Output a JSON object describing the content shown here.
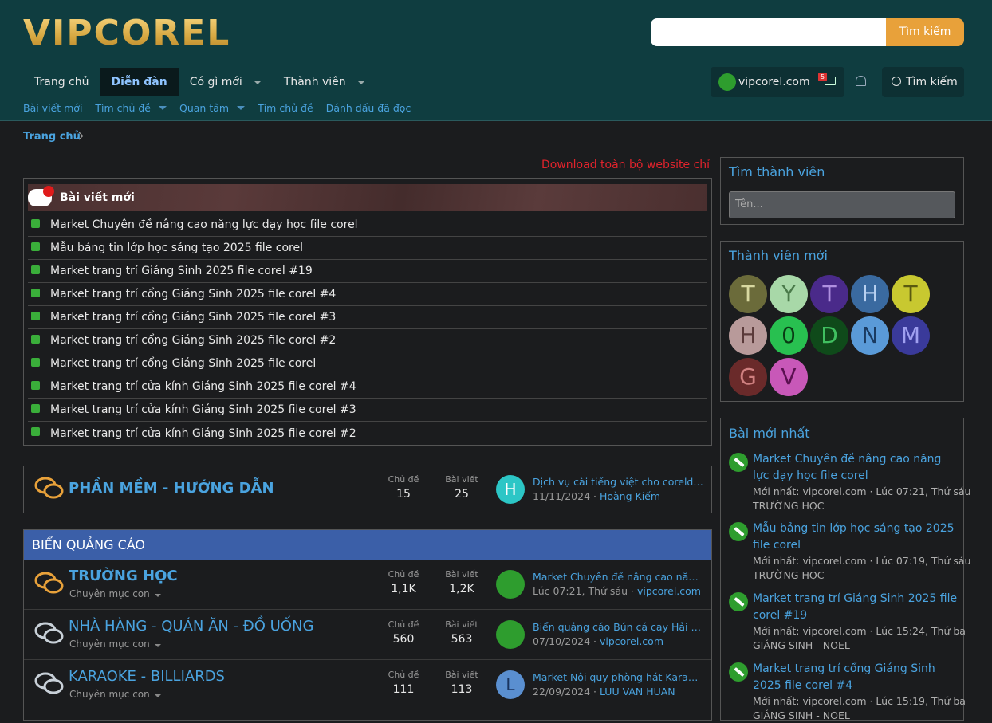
{
  "header": {
    "logo": "VIPCOREL",
    "search_button": "Tìm kiếm"
  },
  "nav": {
    "items": [
      "Trang chủ",
      "Diễn đàn",
      "Có gì mới",
      "Thành viên"
    ],
    "user": "vipcorel.com",
    "mail_count": "5",
    "search": "Tìm kiếm"
  },
  "subnav": [
    "Bài viết mới",
    "Tìm chủ đề",
    "Quan tâm",
    "Tìm chủ đề",
    "Đánh dấu đã đọc"
  ],
  "breadcrumb": "Trang chủ",
  "marquee": "Download toàn bộ website chỉ v",
  "latest": {
    "title": "Bài viết mới",
    "items": [
      "Market Chuyên đề nâng cao năng lực dạy học file corel",
      "Mẫu bảng tin lớp học sáng tạo 2025 file corel",
      "Market trang trí Giáng Sinh 2025 file corel #19",
      "Market trang trí cổng Giáng Sinh 2025 file corel #4",
      "Market trang trí cổng Giáng Sinh 2025 file corel #3",
      "Market trang trí cổng Giáng Sinh 2025 file corel #2",
      "Market trang trí cổng Giáng Sinh 2025 file corel",
      "Market trang trí cửa kính Giáng Sinh 2025 file corel #4",
      "Market trang trí cửa kính Giáng Sinh 2025 file corel #3",
      "Market trang trí cửa kính Giáng Sinh 2025 file corel #2"
    ]
  },
  "stat_labels": {
    "threads": "Chủ đề",
    "posts": "Bài viết"
  },
  "software": {
    "title": "PHẦN MỀM - HƯỚNG DẪN",
    "threads": "15",
    "posts": "25",
    "avatar": "H",
    "last_title": "Dịch vụ cài tiếng việt cho coreldraw…",
    "last_date": "11/11/2024",
    "last_user": "Hoàng Kiếm"
  },
  "ads": {
    "category": "BIỂN QUẢNG CÁO",
    "subforums_label": "Chuyên mục con",
    "forums": [
      {
        "title": "TRƯỜNG HỌC",
        "threads": "1,1K",
        "posts": "1,2K",
        "avatar": "",
        "last_title": "Market Chuyên đề nâng cao năng lực…",
        "last_date": "Lúc 07:21, Thứ sáu",
        "last_user": "vipcorel.com"
      },
      {
        "title": "NHÀ HÀNG - QUÁN ĂN - ĐỒ UỐNG",
        "threads": "560",
        "posts": "563",
        "avatar": "",
        "last_title": "Biển quảng cáo Bún cá cay Hải Phòng…",
        "last_date": "07/10/2024",
        "last_user": "vipcorel.com"
      },
      {
        "title": "KARAOKE - BILLIARDS",
        "threads": "111",
        "posts": "113",
        "avatar": "L",
        "last_title": "Market Nội quy phòng hát Karaoke…",
        "last_date": "22/09/2024",
        "last_user": "LUU VAN HUAN"
      }
    ]
  },
  "sidebar": {
    "find_member": {
      "title": "Tìm thành viên",
      "placeholder": "Tên..."
    },
    "new_members": {
      "title": "Thành viên mới",
      "avatars": [
        {
          "letter": "T",
          "bg": "#6b6b3a",
          "fg": "#d8d8a0"
        },
        {
          "letter": "Y",
          "bg": "#a8d8a8",
          "fg": "#4a7a4a"
        },
        {
          "letter": "T",
          "bg": "#4a2a8a",
          "fg": "#b090e0"
        },
        {
          "letter": "H",
          "bg": "#3a6aa0",
          "fg": "#b8d0f0"
        },
        {
          "letter": "T",
          "bg": "#c8c830",
          "fg": "#5a5a10"
        },
        {
          "letter": "H",
          "bg": "#b89a9a",
          "fg": "#5a3a3a"
        },
        {
          "letter": "0",
          "bg": "#28c050",
          "fg": "#0a3a14"
        },
        {
          "letter": "D",
          "bg": "#0f4a1a",
          "fg": "#40c060"
        },
        {
          "letter": "N",
          "bg": "#5a9ad8",
          "fg": "#1a3a60"
        },
        {
          "letter": "M",
          "bg": "#3a3a9a",
          "fg": "#a0a0f0"
        },
        {
          "letter": "G",
          "bg": "#6a2a2a",
          "fg": "#d08080"
        },
        {
          "letter": "V",
          "bg": "#c858b8",
          "fg": "#5a1050"
        }
      ]
    },
    "latest_posts": {
      "title": "Bài mới nhất",
      "items": [
        {
          "title": "Market Chuyên đề nâng cao năng lực dạy học file corel",
          "meta": "Mới nhất: vipcorel.com · Lúc 07:21, Thứ sáu",
          "forum": "TRƯỜNG HỌC"
        },
        {
          "title": "Mẫu bảng tin lớp học sáng tạo 2025 file corel",
          "meta": "Mới nhất: vipcorel.com · Lúc 07:19, Thứ sáu",
          "forum": "TRƯỜNG HỌC"
        },
        {
          "title": "Market trang trí Giáng Sinh 2025 file corel #19",
          "meta": "Mới nhất: vipcorel.com · Lúc 15:24, Thứ ba",
          "forum": "GIÁNG SINH - NOEL"
        },
        {
          "title": "Market trang trí cổng Giáng Sinh 2025 file corel #4",
          "meta": "Mới nhất: vipcorel.com · Lúc 15:19, Thứ ba",
          "forum": "GIÁNG SINH - NOEL"
        }
      ]
    }
  }
}
